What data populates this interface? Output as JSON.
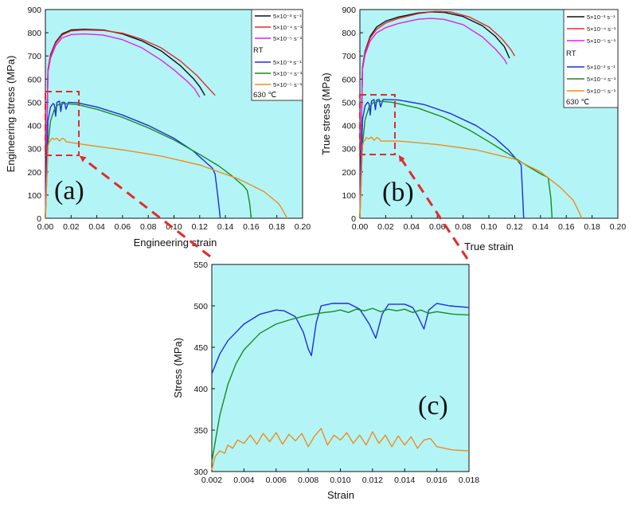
{
  "colors": {
    "plot_bg": "#b3f5f7",
    "black": "#111111",
    "red": "#e8282b",
    "magenta": "#e81ee8",
    "blue": "#1f2be6",
    "green": "#198c19",
    "orange": "#f08c1e",
    "arrow": "#e8282b"
  },
  "chart_data": [
    {
      "type": "line",
      "panel_label": "(a)",
      "xlabel": "Engineering strain",
      "ylabel": "Engineering stress (MPa)",
      "xlim": [
        0,
        0.2
      ],
      "ylim": [
        0,
        900
      ],
      "xticks": [
        "0.00",
        "0.02",
        "0.04",
        "0.06",
        "0.08",
        "0.10",
        "0.12",
        "0.14",
        "0.16",
        "0.18",
        "0.20"
      ],
      "yticks": [
        "0",
        "100",
        "200",
        "300",
        "400",
        "500",
        "600",
        "700",
        "800",
        "900"
      ],
      "legend": {
        "entries": [
          "5×10⁻³ s⁻¹",
          "5×10⁻⁴ s⁻¹",
          "5×10⁻⁵ s⁻¹"
        ],
        "group_label_1": "RT",
        "entries_2": [
          "5×10⁻³ s⁻¹",
          "5×10⁻⁴ s⁻¹",
          "5×10⁻⁵ s⁻¹"
        ],
        "group_label_2": "630 ℃"
      },
      "series": [
        {
          "name": "RT 5×10⁻³ s⁻¹",
          "color": "black",
          "x": [
            0,
            0.002,
            0.004,
            0.008,
            0.013,
            0.02,
            0.03,
            0.045,
            0.06,
            0.075,
            0.09,
            0.105,
            0.115,
            0.12,
            0.124
          ],
          "y": [
            0,
            640,
            705,
            760,
            795,
            812,
            815,
            812,
            795,
            765,
            722,
            658,
            603,
            568,
            530
          ]
        },
        {
          "name": "RT 5×10⁻⁴ s⁻¹",
          "color": "red",
          "x": [
            0,
            0.002,
            0.004,
            0.008,
            0.013,
            0.02,
            0.03,
            0.045,
            0.06,
            0.075,
            0.09,
            0.105,
            0.118,
            0.124,
            0.132
          ],
          "y": [
            0,
            640,
            700,
            755,
            790,
            808,
            812,
            810,
            798,
            772,
            735,
            678,
            615,
            578,
            530
          ]
        },
        {
          "name": "RT 5×10⁻⁵ s⁻¹",
          "color": "magenta",
          "x": [
            0,
            0.002,
            0.004,
            0.008,
            0.013,
            0.02,
            0.03,
            0.045,
            0.06,
            0.075,
            0.09,
            0.1,
            0.11,
            0.116,
            0.12
          ],
          "y": [
            0,
            630,
            690,
            745,
            778,
            792,
            795,
            790,
            770,
            735,
            682,
            640,
            592,
            558,
            522
          ]
        },
        {
          "name": "630 ℃ 5×10⁻³ s⁻¹",
          "color": "blue",
          "x": [
            0,
            0.002,
            0.004,
            0.006,
            0.007,
            0.008,
            0.009,
            0.011,
            0.012,
            0.013,
            0.015,
            0.016,
            0.018,
            0.025,
            0.04,
            0.06,
            0.08,
            0.1,
            0.115,
            0.125,
            0.13,
            0.132,
            0.134,
            0.136
          ],
          "y": [
            0,
            420,
            480,
            495,
            490,
            440,
            500,
            505,
            460,
            500,
            500,
            470,
            500,
            498,
            480,
            445,
            400,
            345,
            290,
            240,
            215,
            190,
            100,
            0
          ]
        },
        {
          "name": "630 ℃ 5×10⁻⁴ s⁻¹",
          "color": "green",
          "x": [
            0,
            0.002,
            0.004,
            0.007,
            0.01,
            0.015,
            0.025,
            0.04,
            0.06,
            0.08,
            0.1,
            0.12,
            0.135,
            0.145,
            0.154,
            0.157,
            0.159,
            0.16
          ],
          "y": [
            0,
            315,
            420,
            470,
            490,
            495,
            490,
            470,
            435,
            390,
            338,
            275,
            225,
            183,
            140,
            120,
            60,
            0
          ]
        },
        {
          "name": "630 ℃ 5×10⁻⁵ s⁻¹",
          "color": "orange",
          "x": [
            0,
            0.002,
            0.003,
            0.004,
            0.005,
            0.007,
            0.009,
            0.011,
            0.013,
            0.015,
            0.016,
            0.03,
            0.06,
            0.09,
            0.12,
            0.15,
            0.17,
            0.181,
            0.183,
            0.186,
            0.188
          ],
          "y": [
            0,
            310,
            330,
            335,
            345,
            340,
            345,
            333,
            345,
            340,
            330,
            318,
            295,
            268,
            230,
            170,
            115,
            65,
            50,
            20,
            0
          ]
        }
      ]
    },
    {
      "type": "line",
      "panel_label": "(b)",
      "xlabel": "True strain",
      "ylabel": "True stress (MPa)",
      "xlim": [
        0,
        0.2
      ],
      "ylim": [
        0,
        900
      ],
      "xticks": [
        "0.00",
        "0.02",
        "0.04",
        "0.06",
        "0.08",
        "0.10",
        "0.12",
        "0.14",
        "0.16",
        "0.18",
        "0.20"
      ],
      "yticks": [
        "0",
        "100",
        "200",
        "300",
        "400",
        "500",
        "600",
        "700",
        "800",
        "900"
      ],
      "legend": {
        "entries": [
          "5×10⁻³ s⁻¹",
          "5×10⁻⁴ s⁻¹",
          "5×10⁻⁵ s⁻¹"
        ],
        "group_label_1": "RT",
        "entries_2": [
          "5×10⁻³ s⁻¹",
          "5×10⁻⁴ s⁻¹",
          "5×10⁻⁵ s⁻¹"
        ],
        "group_label_2": "630 ℃"
      },
      "series": [
        {
          "name": "RT 5×10⁻³ s⁻¹",
          "color": "black",
          "x": [
            0,
            0.002,
            0.004,
            0.008,
            0.013,
            0.02,
            0.03,
            0.045,
            0.055,
            0.065,
            0.08,
            0.095,
            0.105,
            0.112,
            0.116
          ],
          "y": [
            0,
            650,
            720,
            785,
            825,
            850,
            868,
            885,
            890,
            888,
            870,
            830,
            785,
            740,
            690
          ]
        },
        {
          "name": "RT 5×10⁻⁴ s⁻¹",
          "color": "red",
          "x": [
            0,
            0.002,
            0.004,
            0.008,
            0.013,
            0.02,
            0.03,
            0.045,
            0.058,
            0.07,
            0.085,
            0.1,
            0.11,
            0.117,
            0.12
          ],
          "y": [
            0,
            650,
            715,
            778,
            815,
            842,
            862,
            882,
            892,
            890,
            868,
            825,
            775,
            728,
            700
          ]
        },
        {
          "name": "RT 5×10⁻⁵ s⁻¹",
          "color": "magenta",
          "x": [
            0,
            0.002,
            0.004,
            0.008,
            0.013,
            0.02,
            0.03,
            0.045,
            0.055,
            0.065,
            0.08,
            0.095,
            0.105,
            0.112,
            0.114
          ],
          "y": [
            0,
            640,
            705,
            765,
            800,
            822,
            840,
            858,
            862,
            858,
            835,
            782,
            730,
            685,
            665
          ]
        },
        {
          "name": "630 ℃ 5×10⁻³ s⁻¹",
          "color": "blue",
          "x": [
            0,
            0.002,
            0.004,
            0.006,
            0.007,
            0.008,
            0.009,
            0.011,
            0.012,
            0.013,
            0.015,
            0.016,
            0.018,
            0.03,
            0.05,
            0.07,
            0.09,
            0.105,
            0.115,
            0.122,
            0.125,
            0.126,
            0.127
          ],
          "y": [
            0,
            425,
            485,
            500,
            495,
            445,
            505,
            512,
            468,
            510,
            512,
            480,
            512,
            510,
            490,
            452,
            400,
            345,
            295,
            250,
            230,
            120,
            0
          ]
        },
        {
          "name": "630 ℃ 5×10⁻⁴ s⁻¹",
          "color": "green",
          "x": [
            0,
            0.002,
            0.004,
            0.007,
            0.01,
            0.015,
            0.025,
            0.045,
            0.065,
            0.085,
            0.1,
            0.115,
            0.13,
            0.14,
            0.146,
            0.148,
            0.149
          ],
          "y": [
            0,
            318,
            425,
            478,
            497,
            505,
            500,
            475,
            435,
            380,
            330,
            278,
            225,
            192,
            175,
            90,
            0
          ]
        },
        {
          "name": "630 ℃ 5×10⁻⁵ s⁻¹",
          "color": "orange",
          "x": [
            0,
            0.002,
            0.003,
            0.004,
            0.005,
            0.007,
            0.009,
            0.011,
            0.013,
            0.015,
            0.016,
            0.03,
            0.06,
            0.09,
            0.12,
            0.14,
            0.155,
            0.165,
            0.167,
            0.17,
            0.172
          ],
          "y": [
            0,
            312,
            332,
            338,
            348,
            342,
            350,
            336,
            348,
            343,
            333,
            333,
            318,
            295,
            255,
            200,
            135,
            80,
            60,
            25,
            0
          ]
        }
      ]
    },
    {
      "type": "line",
      "panel_label": "(c)",
      "xlabel": "Strain",
      "ylabel": "Stress (MPa)",
      "xlim": [
        0.002,
        0.018
      ],
      "ylim": [
        300,
        550
      ],
      "xticks": [
        "0.002",
        "0.004",
        "0.006",
        "0.008",
        "0.010",
        "0.012",
        "0.014",
        "0.016",
        "0.018"
      ],
      "yticks": [
        "300",
        "350",
        "400",
        "450",
        "500",
        "550"
      ],
      "series": [
        {
          "name": "630 ℃ 5×10⁻³ s⁻¹",
          "color": "blue",
          "x": [
            0.002,
            0.0025,
            0.003,
            0.004,
            0.005,
            0.006,
            0.0065,
            0.0072,
            0.0077,
            0.008,
            0.0082,
            0.0085,
            0.0088,
            0.0095,
            0.0105,
            0.0112,
            0.0118,
            0.0122,
            0.0126,
            0.013,
            0.014,
            0.0145,
            0.0148,
            0.0152,
            0.0155,
            0.016,
            0.0168,
            0.018
          ],
          "y": [
            418,
            442,
            458,
            478,
            490,
            495,
            494,
            487,
            468,
            448,
            440,
            480,
            500,
            503,
            503,
            496,
            478,
            461,
            490,
            502,
            502,
            498,
            488,
            472,
            495,
            503,
            500,
            498
          ]
        },
        {
          "name": "630 ℃ 5×10⁻⁴ s⁻¹",
          "color": "green",
          "x": [
            0.002,
            0.0025,
            0.003,
            0.0035,
            0.004,
            0.005,
            0.006,
            0.007,
            0.008,
            0.009,
            0.0095,
            0.01,
            0.0105,
            0.011,
            0.0115,
            0.012,
            0.0125,
            0.013,
            0.0135,
            0.014,
            0.0145,
            0.015,
            0.0155,
            0.016,
            0.017,
            0.018
          ],
          "y": [
            312,
            368,
            405,
            430,
            447,
            467,
            478,
            484,
            489,
            492,
            493,
            495,
            492,
            496,
            494,
            497,
            493,
            496,
            494,
            496,
            492,
            495,
            491,
            493,
            490,
            489
          ]
        },
        {
          "name": "630 ℃ 5×10⁻⁵ s⁻¹",
          "color": "orange",
          "x": [
            0.002,
            0.0022,
            0.0025,
            0.0028,
            0.003,
            0.0033,
            0.0036,
            0.004,
            0.0044,
            0.0048,
            0.0052,
            0.0056,
            0.006,
            0.0064,
            0.0068,
            0.0072,
            0.0076,
            0.008,
            0.0084,
            0.0088,
            0.0092,
            0.0096,
            0.01,
            0.0104,
            0.0108,
            0.0112,
            0.0116,
            0.012,
            0.0124,
            0.0128,
            0.0132,
            0.0136,
            0.014,
            0.0144,
            0.0148,
            0.0152,
            0.0156,
            0.016,
            0.017,
            0.018
          ],
          "y": [
            302,
            318,
            325,
            322,
            332,
            328,
            338,
            334,
            344,
            333,
            346,
            336,
            347,
            333,
            345,
            337,
            346,
            330,
            343,
            352,
            332,
            344,
            338,
            347,
            334,
            344,
            332,
            348,
            334,
            344,
            330,
            343,
            332,
            342,
            328,
            338,
            340,
            330,
            326,
            325
          ]
        }
      ]
    }
  ]
}
